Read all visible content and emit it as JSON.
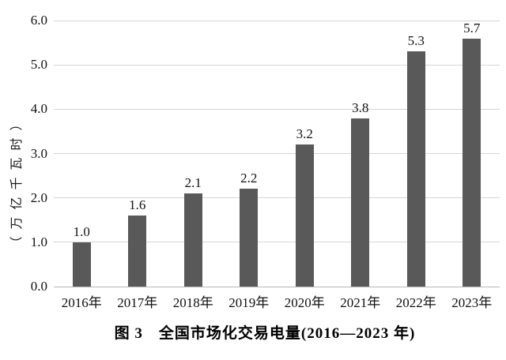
{
  "figure": {
    "caption": "图 3　全国市场化交易电量(2016—2023 年)"
  },
  "chart_data": {
    "type": "bar",
    "title": "图 3　全国市场化交易电量(2016—2023 年)",
    "xlabel": "",
    "ylabel": "（万亿千瓦时）",
    "categories": [
      "2016年",
      "2017年",
      "2018年",
      "2019年",
      "2020年",
      "2021年",
      "2022年",
      "2023年"
    ],
    "values": [
      1.0,
      1.6,
      2.1,
      2.2,
      3.2,
      3.8,
      5.3,
      5.7
    ],
    "data_labels": [
      "1.0",
      "1.6",
      "2.1",
      "2.2",
      "3.2",
      "3.8",
      "5.3",
      "5.7"
    ],
    "ylim": [
      0,
      6
    ],
    "yticks": [
      "6.0",
      "5.0",
      "4.0",
      "3.0",
      "2.0",
      "1.0",
      "0.0"
    ],
    "ytick_values": [
      6,
      5,
      4,
      3,
      2,
      1,
      0
    ],
    "grid": true,
    "legend": false,
    "legend_position": "none",
    "bar_color": "#595959",
    "gridline_color": "#d5d5d5",
    "axis_color": "#b8b8b8",
    "text_color": "#111111",
    "background_color": "#ffffff"
  }
}
